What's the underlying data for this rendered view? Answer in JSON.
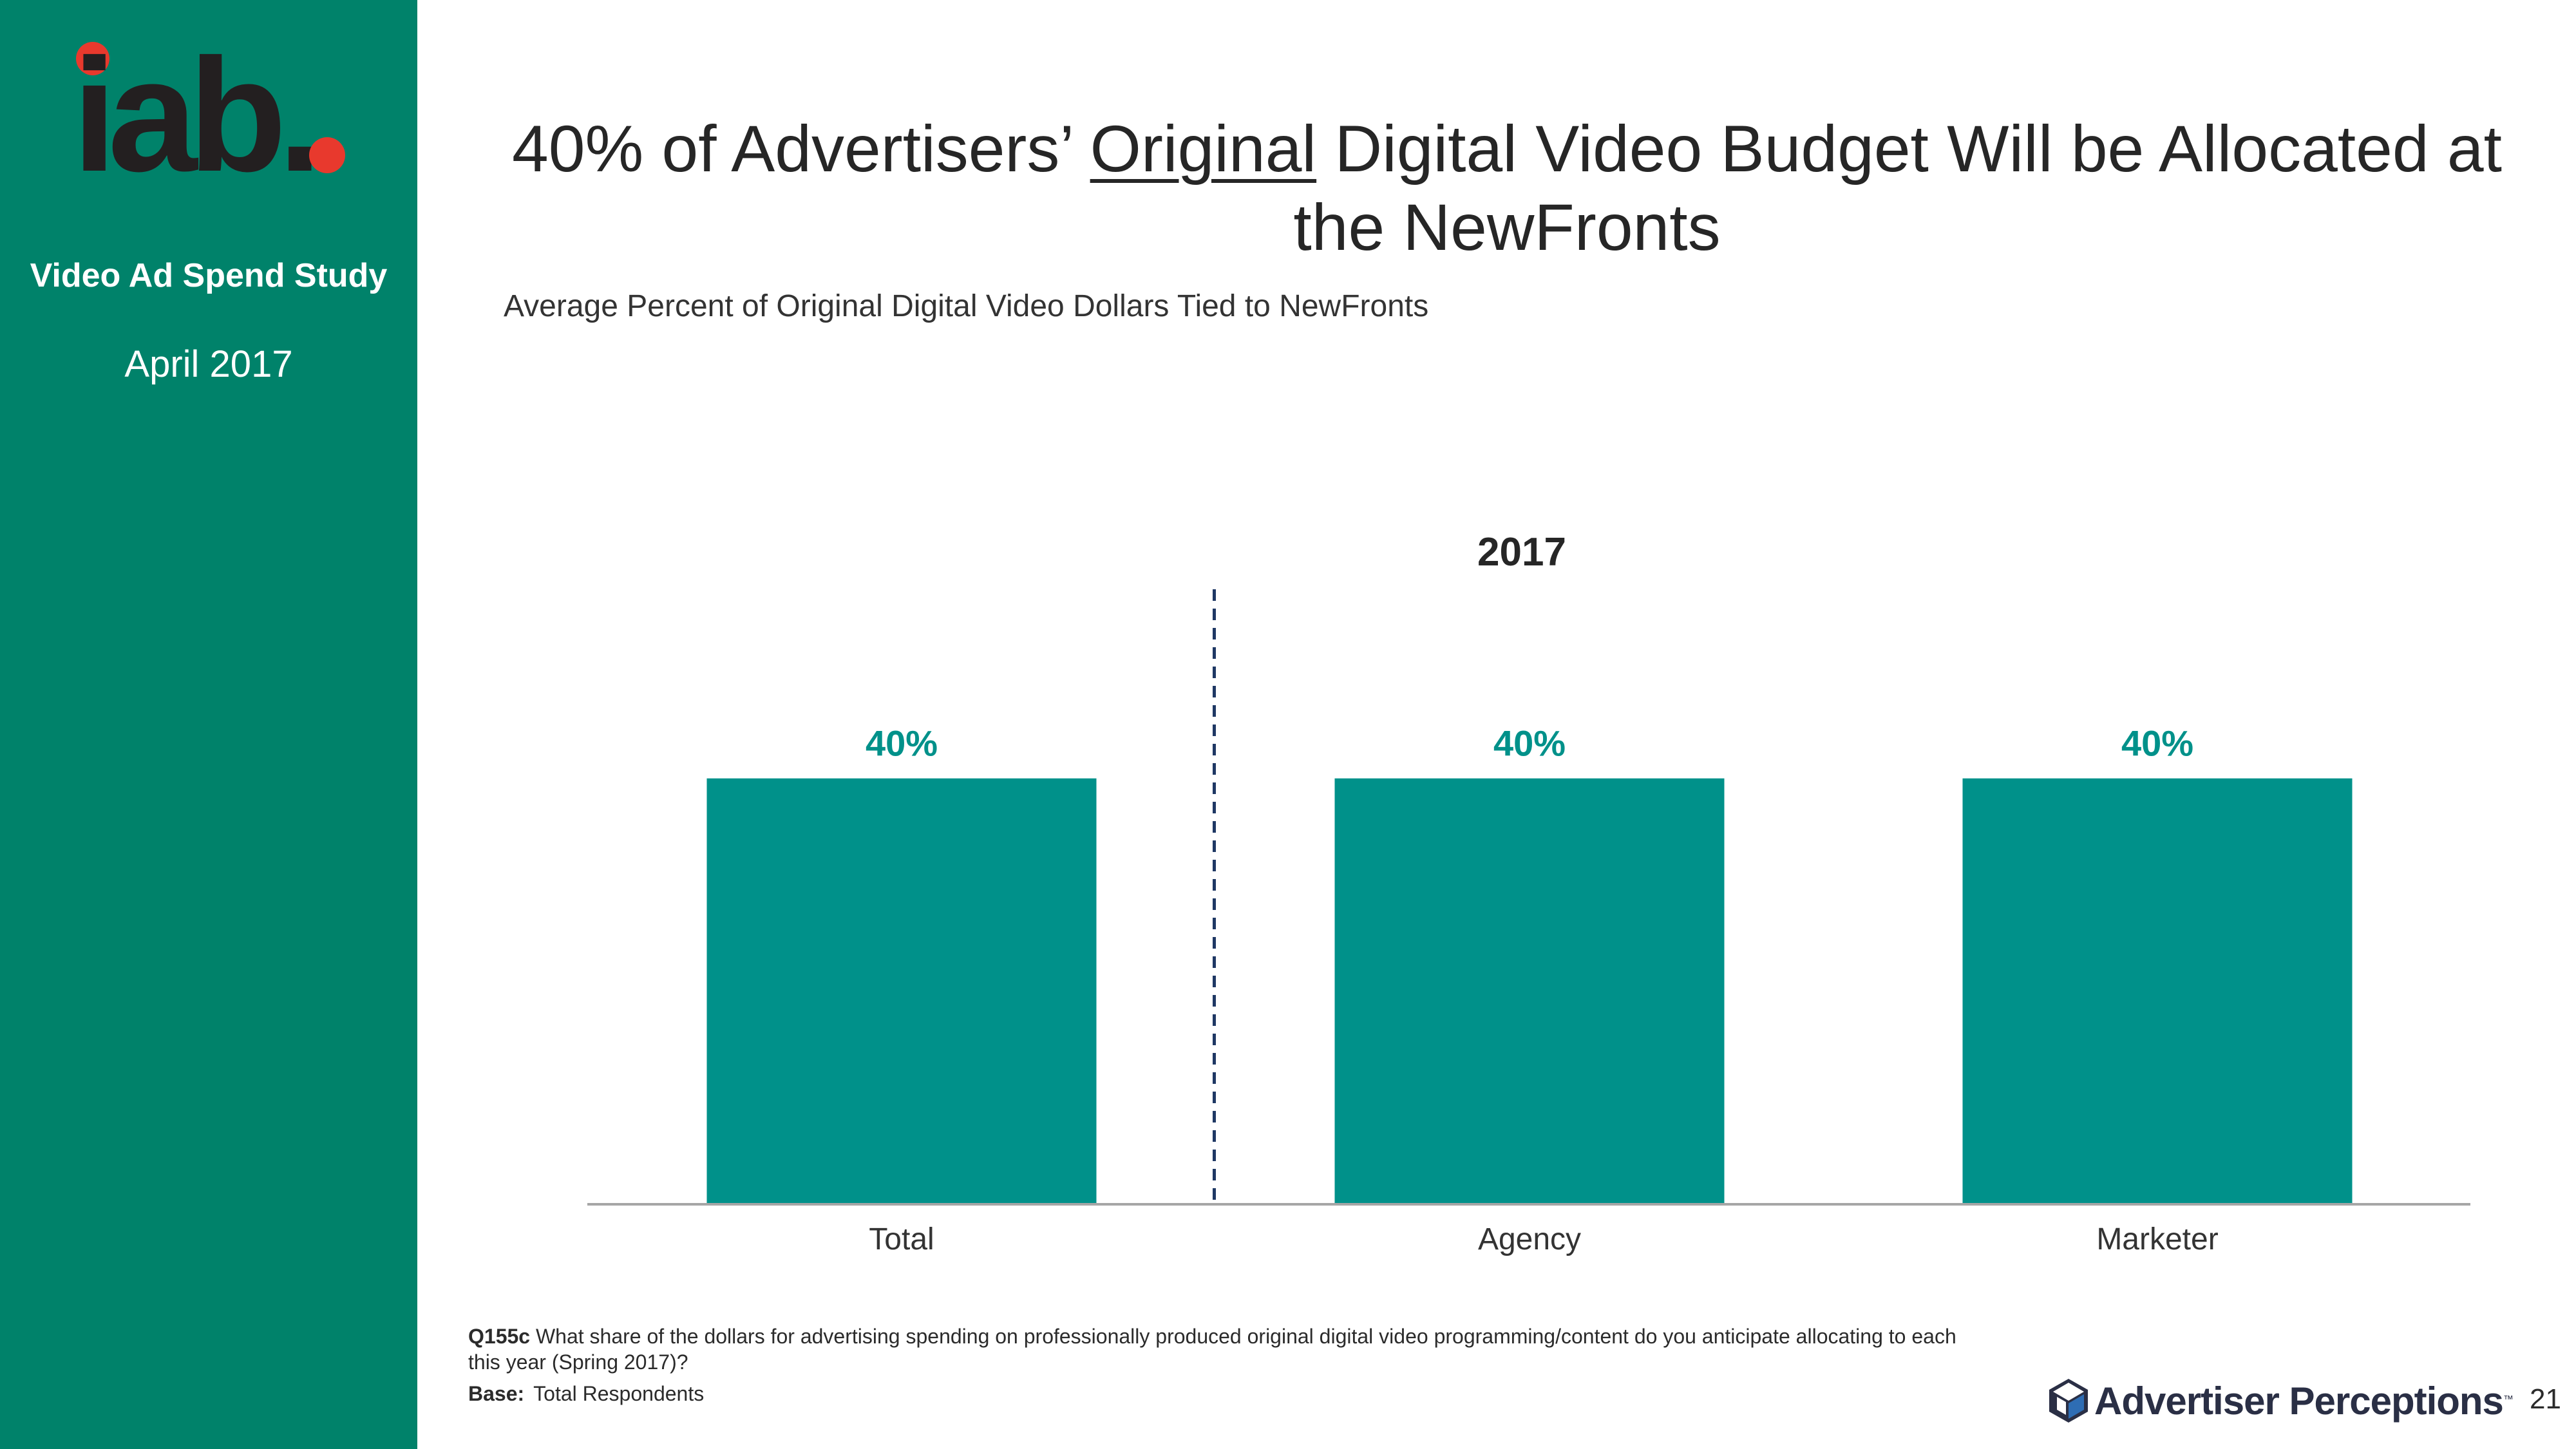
{
  "sidebar": {
    "logo_text": "iab.",
    "study_title": "Video Ad Spend Study",
    "study_date": "April 2017"
  },
  "slide": {
    "title_part1": "40% of Advertisers’ ",
    "title_underlined": "Original",
    "title_part2": " Digital Video Budget Will be Allocated at the NewFronts",
    "subtitle": "Average Percent of Original Digital Video Dollars Tied to NewFronts"
  },
  "chart_data": {
    "type": "bar",
    "title": "2017",
    "categories": [
      "Total",
      "Agency",
      "Marketer"
    ],
    "values": [
      40,
      40,
      40
    ],
    "data_labels": [
      "40%",
      "40%",
      "40%"
    ],
    "ylim": [
      0,
      75
    ],
    "xlabel": "",
    "ylabel": "",
    "grid": false,
    "bar_color": "#00918A",
    "label_color": "#00918A",
    "divider_after_category": "Total",
    "divider_style": "dashed"
  },
  "footnote": {
    "question_id": "Q155c",
    "question_text": "What share of the dollars for advertising spending on professionally produced original digital video programming/content do you anticipate allocating to each this year (Spring 2017)?",
    "base_label": "Base:",
    "base_text": "Total Respondents"
  },
  "branding": {
    "ap_name": "Advertiser Perceptions",
    "ap_tm": "™",
    "page_number": "21"
  },
  "colors": {
    "sidebar": "#00826A",
    "logo_dot": "#E8392D",
    "logo_text": "#231F20"
  }
}
